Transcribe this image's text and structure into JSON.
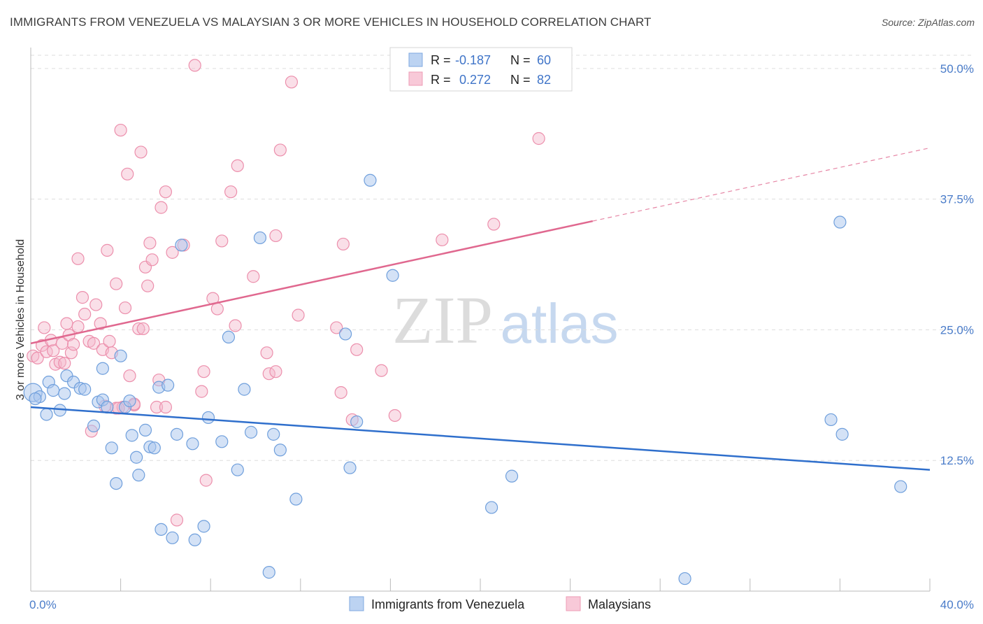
{
  "title": "IMMIGRANTS FROM VENEZUELA VS MALAYSIAN 3 OR MORE VEHICLES IN HOUSEHOLD CORRELATION CHART",
  "source": "Source: ZipAtlas.com",
  "watermark": {
    "zip": "ZIP",
    "atlas": "atlas"
  },
  "colors": {
    "blue_fill": "#a9c6ee",
    "blue_stroke": "#6f9fdc",
    "blue_line": "#2f6fcc",
    "pink_fill": "#f5b8cb",
    "pink_stroke": "#ec8fac",
    "pink_line": "#e0688f",
    "grid": "#dddddd",
    "tick_text": "#4a7cc9"
  },
  "legend": {
    "rows": [
      {
        "r_label": "R =",
        "r_value": "-0.187",
        "n_label": "N =",
        "n_value": "60"
      },
      {
        "r_label": "R =",
        "r_value": "0.272",
        "n_label": "N =",
        "n_value": "82"
      }
    ]
  },
  "bottom_legend": [
    "Immigrants from Venezuela",
    "Malaysians"
  ],
  "chart_data": {
    "type": "scatter",
    "title": "IMMIGRANTS FROM VENEZUELA VS MALAYSIAN 3 OR MORE VEHICLES IN HOUSEHOLD CORRELATION CHART",
    "xlabel": "",
    "ylabel": "3 or more Vehicles in Household",
    "xlim": [
      0,
      40
    ],
    "ylim": [
      0,
      52
    ],
    "x_tick_labels": [
      "0.0%",
      "40.0%"
    ],
    "y_ticks": [
      12.5,
      25.0,
      37.5,
      50.0
    ],
    "y_tick_labels": [
      "12.5%",
      "25.0%",
      "37.5%",
      "50.0%"
    ],
    "grid": "horizontal dashed",
    "legend_position": "top-center",
    "series": [
      {
        "name": "Immigrants from Venezuela",
        "r": -0.187,
        "n": 60,
        "trend": {
          "x": [
            0,
            40
          ],
          "y": [
            17.6,
            11.6
          ]
        },
        "points": [
          [
            0.1,
            19.0
          ],
          [
            0.4,
            18.6
          ],
          [
            0.7,
            16.9
          ],
          [
            0.8,
            20.0
          ],
          [
            1.0,
            19.2
          ],
          [
            1.3,
            17.3
          ],
          [
            1.5,
            18.9
          ],
          [
            1.6,
            20.6
          ],
          [
            1.9,
            20.0
          ],
          [
            2.2,
            19.4
          ],
          [
            2.4,
            19.3
          ],
          [
            2.8,
            15.8
          ],
          [
            3.0,
            18.1
          ],
          [
            3.2,
            18.3
          ],
          [
            3.2,
            21.3
          ],
          [
            3.4,
            17.6
          ],
          [
            3.6,
            13.7
          ],
          [
            3.8,
            10.3
          ],
          [
            4.0,
            22.5
          ],
          [
            4.2,
            17.6
          ],
          [
            4.4,
            18.2
          ],
          [
            4.5,
            14.9
          ],
          [
            4.7,
            12.8
          ],
          [
            4.8,
            11.1
          ],
          [
            5.1,
            15.4
          ],
          [
            5.3,
            13.8
          ],
          [
            5.5,
            13.7
          ],
          [
            5.7,
            19.5
          ],
          [
            5.8,
            5.9
          ],
          [
            6.1,
            19.7
          ],
          [
            6.3,
            5.1
          ],
          [
            6.5,
            15.0
          ],
          [
            6.7,
            33.1
          ],
          [
            7.2,
            14.1
          ],
          [
            7.3,
            4.9
          ],
          [
            7.7,
            6.2
          ],
          [
            7.9,
            16.6
          ],
          [
            8.5,
            14.3
          ],
          [
            8.8,
            24.3
          ],
          [
            9.2,
            11.6
          ],
          [
            9.5,
            19.3
          ],
          [
            9.8,
            15.2
          ],
          [
            10.2,
            33.8
          ],
          [
            10.6,
            1.8
          ],
          [
            10.8,
            15.0
          ],
          [
            11.1,
            13.5
          ],
          [
            11.8,
            8.8
          ],
          [
            14.0,
            24.6
          ],
          [
            14.2,
            11.8
          ],
          [
            14.5,
            16.2
          ],
          [
            15.1,
            39.3
          ],
          [
            16.1,
            30.2
          ],
          [
            20.5,
            8.0
          ],
          [
            21.4,
            11.0
          ],
          [
            29.1,
            1.2
          ],
          [
            35.6,
            16.4
          ],
          [
            36.1,
            15.0
          ],
          [
            36.0,
            35.3
          ],
          [
            38.7,
            10.0
          ],
          [
            0.2,
            18.4
          ]
        ]
      },
      {
        "name": "Malaysians",
        "r": 0.272,
        "n": 82,
        "trend": {
          "x": [
            0,
            25
          ],
          "y": [
            23.7,
            35.4
          ]
        },
        "trend_extension": {
          "x": [
            25,
            40
          ],
          "y": [
            35.4,
            42.4
          ]
        },
        "points": [
          [
            0.1,
            22.5
          ],
          [
            0.3,
            22.3
          ],
          [
            0.5,
            23.5
          ],
          [
            0.6,
            25.2
          ],
          [
            0.7,
            22.9
          ],
          [
            0.9,
            24.0
          ],
          [
            1.0,
            23.0
          ],
          [
            1.1,
            21.7
          ],
          [
            1.3,
            21.9
          ],
          [
            1.4,
            23.7
          ],
          [
            1.5,
            21.8
          ],
          [
            1.6,
            25.6
          ],
          [
            1.7,
            24.5
          ],
          [
            1.8,
            22.8
          ],
          [
            1.9,
            23.6
          ],
          [
            2.1,
            25.3
          ],
          [
            2.1,
            31.8
          ],
          [
            2.3,
            28.1
          ],
          [
            2.4,
            26.5
          ],
          [
            2.6,
            23.9
          ],
          [
            2.7,
            15.3
          ],
          [
            2.8,
            23.7
          ],
          [
            2.9,
            27.4
          ],
          [
            3.1,
            25.6
          ],
          [
            3.2,
            23.1
          ],
          [
            3.3,
            17.7
          ],
          [
            3.4,
            32.6
          ],
          [
            3.5,
            23.9
          ],
          [
            3.6,
            22.8
          ],
          [
            3.8,
            17.5
          ],
          [
            3.8,
            29.4
          ],
          [
            4.1,
            17.6
          ],
          [
            4.0,
            44.1
          ],
          [
            4.2,
            27.1
          ],
          [
            4.3,
            39.9
          ],
          [
            4.4,
            20.6
          ],
          [
            4.6,
            17.8
          ],
          [
            4.8,
            25.1
          ],
          [
            5.0,
            25.1
          ],
          [
            4.9,
            42.0
          ],
          [
            5.1,
            31.0
          ],
          [
            5.2,
            29.2
          ],
          [
            5.3,
            33.3
          ],
          [
            5.4,
            31.7
          ],
          [
            5.6,
            17.6
          ],
          [
            5.7,
            20.2
          ],
          [
            5.8,
            36.7
          ],
          [
            6.0,
            38.2
          ],
          [
            6.3,
            32.4
          ],
          [
            6.5,
            6.8
          ],
          [
            6.8,
            33.1
          ],
          [
            7.6,
            19.1
          ],
          [
            7.7,
            21.0
          ],
          [
            7.8,
            10.6
          ],
          [
            8.1,
            28.0
          ],
          [
            8.3,
            27.0
          ],
          [
            8.5,
            33.5
          ],
          [
            8.9,
            38.2
          ],
          [
            9.1,
            25.4
          ],
          [
            9.2,
            40.7
          ],
          [
            9.9,
            30.1
          ],
          [
            10.5,
            22.8
          ],
          [
            10.6,
            20.8
          ],
          [
            10.9,
            34.0
          ],
          [
            11.1,
            42.2
          ],
          [
            11.6,
            48.7
          ],
          [
            11.9,
            26.4
          ],
          [
            13.6,
            25.2
          ],
          [
            13.8,
            19.0
          ],
          [
            13.9,
            33.2
          ],
          [
            14.3,
            16.4
          ],
          [
            14.5,
            23.1
          ],
          [
            15.6,
            21.1
          ],
          [
            16.2,
            16.8
          ],
          [
            18.3,
            33.6
          ],
          [
            20.6,
            35.1
          ],
          [
            22.6,
            43.3
          ],
          [
            7.3,
            50.3
          ],
          [
            6.0,
            17.6
          ],
          [
            4.6,
            17.9
          ],
          [
            3.9,
            17.5
          ],
          [
            10.9,
            21.0
          ]
        ]
      }
    ]
  }
}
